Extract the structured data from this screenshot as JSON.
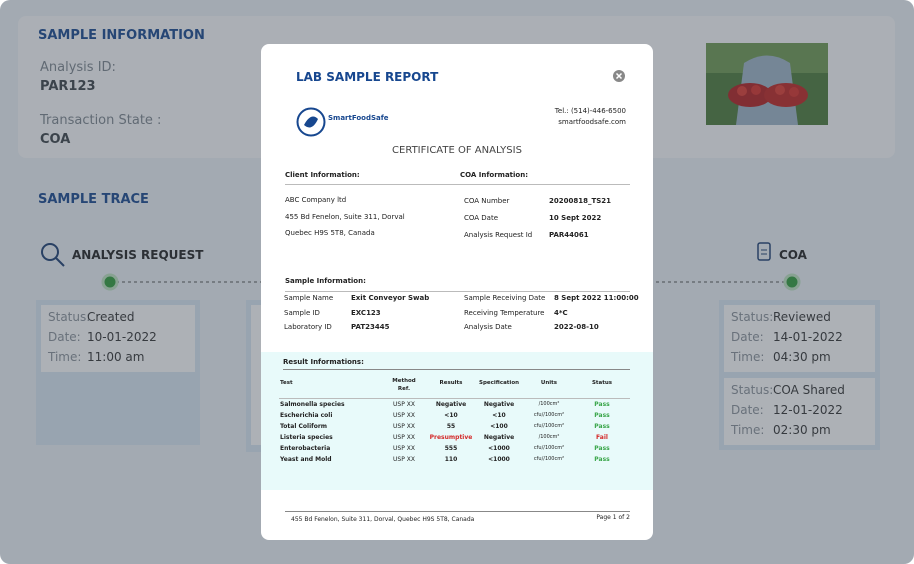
{
  "sample_information": {
    "title": "SAMPLE INFORMATION",
    "analysis_id_label": "Analysis ID:",
    "analysis_id": "PAR123",
    "transaction_state_label": "Transaction State :",
    "transaction_state": "COA"
  },
  "sample_trace": {
    "title": "SAMPLE TRACE",
    "analysis_request": {
      "title": "ANALYSIS REQUEST",
      "cards": [
        {
          "fields": [
            [
              "Status:",
              "Created"
            ],
            [
              "Date:",
              "10-01-2022"
            ],
            [
              "Time:",
              "11:00 am"
            ]
          ]
        }
      ]
    },
    "coa": {
      "title": "COA",
      "cards": [
        {
          "fields": [
            [
              "Status:",
              "Reviewed"
            ],
            [
              "Date:",
              "14-01-2022"
            ],
            [
              "Time:",
              "04:30 pm"
            ]
          ]
        },
        {
          "fields": [
            [
              "Status:",
              "COA Shared"
            ],
            [
              "Date:",
              "12-01-2022"
            ],
            [
              "Time:",
              "02:30 pm"
            ]
          ]
        }
      ]
    }
  },
  "modal": {
    "title": "LAB SAMPLE REPORT",
    "logo": "SmartFoodSafe",
    "tel": "Tel.: (514)-446-6500",
    "website": "smartfoodsafe.com",
    "heading": "CERTIFICATE OF ANALYSIS",
    "client": {
      "title": "Client Information:",
      "lines": [
        "ABC Company ltd",
        "455 Bd Fenelon, Suite 311, Dorval",
        "Quebec H9S 5T8, Canada"
      ]
    },
    "coa_info": {
      "title": "COA Information:",
      "fields": [
        [
          "COA Number",
          "20200818_TS21"
        ],
        [
          "COA Date",
          "10 Sept 2022"
        ],
        [
          "Analysis Request Id",
          "PAR44061"
        ]
      ]
    },
    "sample": {
      "title": "Sample Information:",
      "left": [
        [
          "Sample Name",
          "Exit Conveyor Swab"
        ],
        [
          "Sample ID",
          "EXC123"
        ],
        [
          "Laboratory ID",
          "PAT23445"
        ]
      ],
      "right": [
        [
          "Sample Receiving Date",
          "8 Sept 2022 11:00:00"
        ],
        [
          "Receiving Temperature",
          "4*C"
        ],
        [
          "Analysis Date",
          "2022-08-10"
        ]
      ]
    },
    "results": {
      "title": "Result Informations:",
      "columns": [
        "Test",
        "Method Ref.",
        "Results",
        "Specification",
        "Units",
        "Status"
      ],
      "rows": [
        [
          "Salmonella species",
          "USP XX",
          "Negative",
          "Negative",
          "/100cm²",
          "Pass"
        ],
        [
          "Escherichia coli",
          "USP XX",
          "<10",
          "<10",
          "cfu//100cm²",
          "Pass"
        ],
        [
          "Total Coliform",
          "USP XX",
          "55",
          "<100",
          "cfu//100cm²",
          "Pass"
        ],
        [
          "Listeria species",
          "USP XX",
          "Presumptive",
          "Negative",
          "/100cm²",
          "Fail"
        ],
        [
          "Enterobacteria",
          "USP XX",
          "555",
          "<1000",
          "cfu//100cm²",
          "Pass"
        ],
        [
          "Yeast and Mold",
          "USP XX",
          "110",
          "<1000",
          "cfu//100cm²",
          "Pass"
        ]
      ]
    },
    "footer": {
      "address": "455 Bd Fenelon, Suite 311, Dorval, Quebec H9S 5T8, Canada",
      "page": "Page 1 of 2"
    }
  }
}
